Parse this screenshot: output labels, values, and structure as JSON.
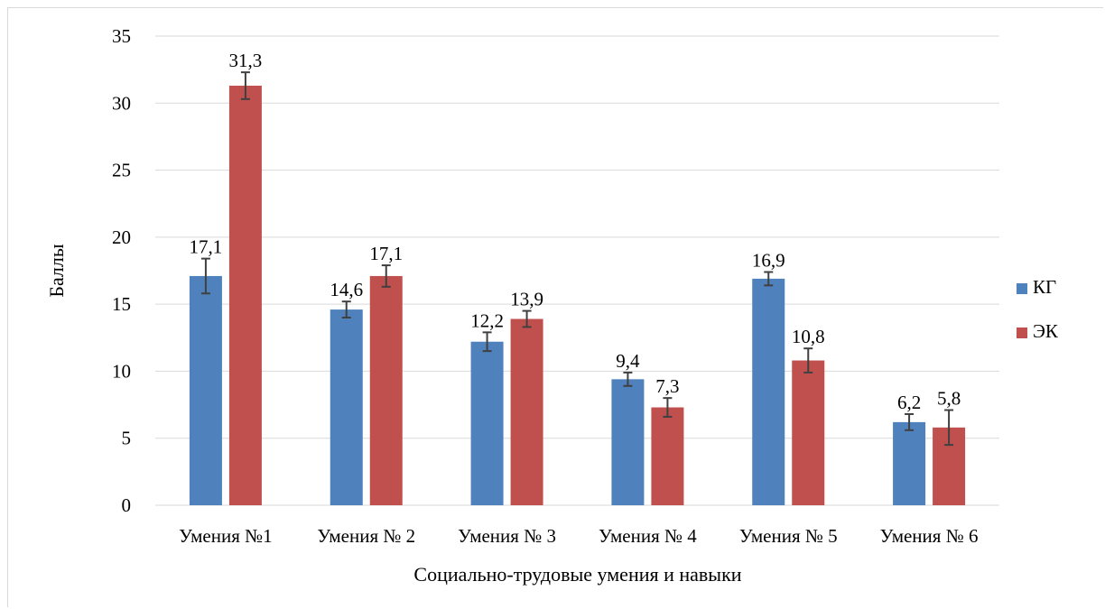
{
  "chart_data": {
    "type": "bar",
    "categories": [
      "Умения №1",
      "Умения № 2",
      "Умения № 3",
      "Умения № 4",
      "Умения № 5",
      "Умения № 6"
    ],
    "series": [
      {
        "name": "КГ",
        "color": "#4f81bd",
        "values": [
          17.1,
          14.6,
          12.2,
          9.4,
          16.9,
          6.2
        ],
        "value_labels": [
          "17,1",
          "14,6",
          "12,2",
          "9,4",
          "16,9",
          "6,2"
        ],
        "error": [
          1.3,
          0.6,
          0.7,
          0.5,
          0.5,
          0.6
        ]
      },
      {
        "name": "ЭК",
        "color": "#c0504d",
        "values": [
          31.3,
          17.1,
          13.9,
          7.3,
          10.8,
          5.8
        ],
        "value_labels": [
          "31,3",
          "17,1",
          "13,9",
          "7,3",
          "10,8",
          "5,8"
        ],
        "error": [
          1.0,
          0.8,
          0.6,
          0.7,
          0.9,
          1.3
        ]
      }
    ],
    "ylim": [
      0,
      35
    ],
    "yticks": [
      0,
      5,
      10,
      15,
      20,
      25,
      30,
      35
    ],
    "xlabel": "Социально-трудовые умения и навыки",
    "ylabel": "Баллы",
    "grid": true,
    "legend": "right"
  }
}
